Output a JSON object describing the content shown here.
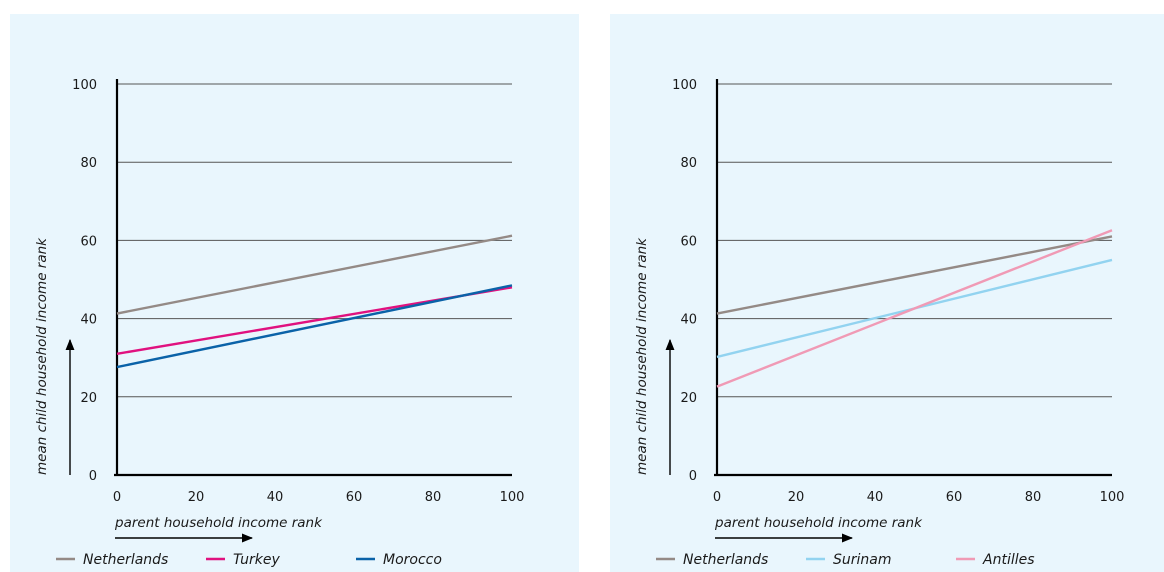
{
  "chart_data": [
    {
      "type": "line",
      "xlabel": "parent household income rank",
      "ylabel": "mean child household income rank",
      "xlim": [
        0,
        100
      ],
      "ylim": [
        0,
        100
      ],
      "xticks": [
        0,
        20,
        40,
        60,
        80,
        100
      ],
      "yticks": [
        0,
        20,
        40,
        60,
        80,
        100
      ],
      "grid": true,
      "legend_position": "bottom",
      "series": [
        {
          "name": "Netherlands",
          "color": "#948a86",
          "x": [
            0,
            100
          ],
          "y": [
            41.3,
            61.2
          ]
        },
        {
          "name": "Turkey",
          "color": "#e0117f",
          "x": [
            0,
            100
          ],
          "y": [
            31.0,
            48.0
          ]
        },
        {
          "name": "Morocco",
          "color": "#0a62a8",
          "x": [
            0,
            100
          ],
          "y": [
            27.6,
            48.5
          ]
        }
      ]
    },
    {
      "type": "line",
      "xlabel": "parent household income rank",
      "ylabel": "mean child household income rank",
      "xlim": [
        0,
        100
      ],
      "ylim": [
        0,
        100
      ],
      "xticks": [
        0,
        20,
        40,
        60,
        80,
        100
      ],
      "yticks": [
        0,
        20,
        40,
        60,
        80,
        100
      ],
      "grid": true,
      "legend_position": "bottom",
      "series": [
        {
          "name": "Netherlands",
          "color": "#948a86",
          "x": [
            0,
            100
          ],
          "y": [
            41.3,
            61.0
          ]
        },
        {
          "name": "Surinam",
          "color": "#92d3f0",
          "x": [
            0,
            100
          ],
          "y": [
            30.2,
            55.0
          ]
        },
        {
          "name": "Antilles",
          "color": "#f09ab5",
          "x": [
            0,
            100
          ],
          "y": [
            22.6,
            62.6
          ]
        }
      ]
    }
  ]
}
